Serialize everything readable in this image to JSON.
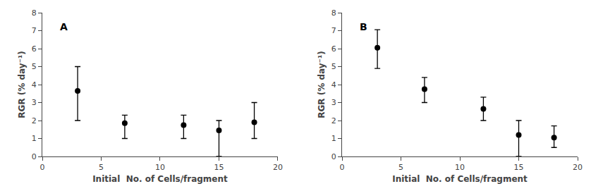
{
  "chart_data": [
    {
      "type": "scatter",
      "annotations": [
        "A"
      ],
      "xlabel": "Initial  No. of Cells/fragment",
      "ylabel": "RGR (% day⁻¹)",
      "x": [
        3,
        7,
        12,
        15,
        18
      ],
      "values": [
        3.65,
        1.85,
        1.75,
        1.45,
        1.9
      ],
      "error_up": [
        1.35,
        0.45,
        0.55,
        0.55,
        1.1
      ],
      "error_down": [
        1.65,
        0.85,
        0.75,
        1.45,
        0.9
      ],
      "color": "#000000",
      "marker": "circle",
      "xlim": [
        0,
        20
      ],
      "ylim": [
        0,
        8
      ],
      "xticks": [
        0,
        5,
        10,
        15,
        20
      ],
      "yticks": [
        0,
        1,
        2,
        3,
        4,
        5,
        6,
        7,
        8
      ],
      "grid": false
    },
    {
      "type": "scatter",
      "annotations": [
        "B"
      ],
      "xlabel": "Initial  No. of Cells/fragment",
      "ylabel": "RGR (% day⁻¹)",
      "x": [
        3,
        7,
        12,
        15,
        18
      ],
      "values": [
        6.05,
        3.75,
        2.65,
        1.2,
        1.05
      ],
      "error_up": [
        1.0,
        0.65,
        0.65,
        0.8,
        0.65
      ],
      "error_down": [
        1.15,
        0.75,
        0.65,
        1.2,
        0.55
      ],
      "color": "#000000",
      "marker": "circle",
      "xlim": [
        0,
        20
      ],
      "ylim": [
        0,
        8
      ],
      "xticks": [
        0,
        5,
        10,
        15,
        20
      ],
      "yticks": [
        0,
        1,
        2,
        3,
        4,
        5,
        6,
        7,
        8
      ],
      "grid": false
    }
  ]
}
